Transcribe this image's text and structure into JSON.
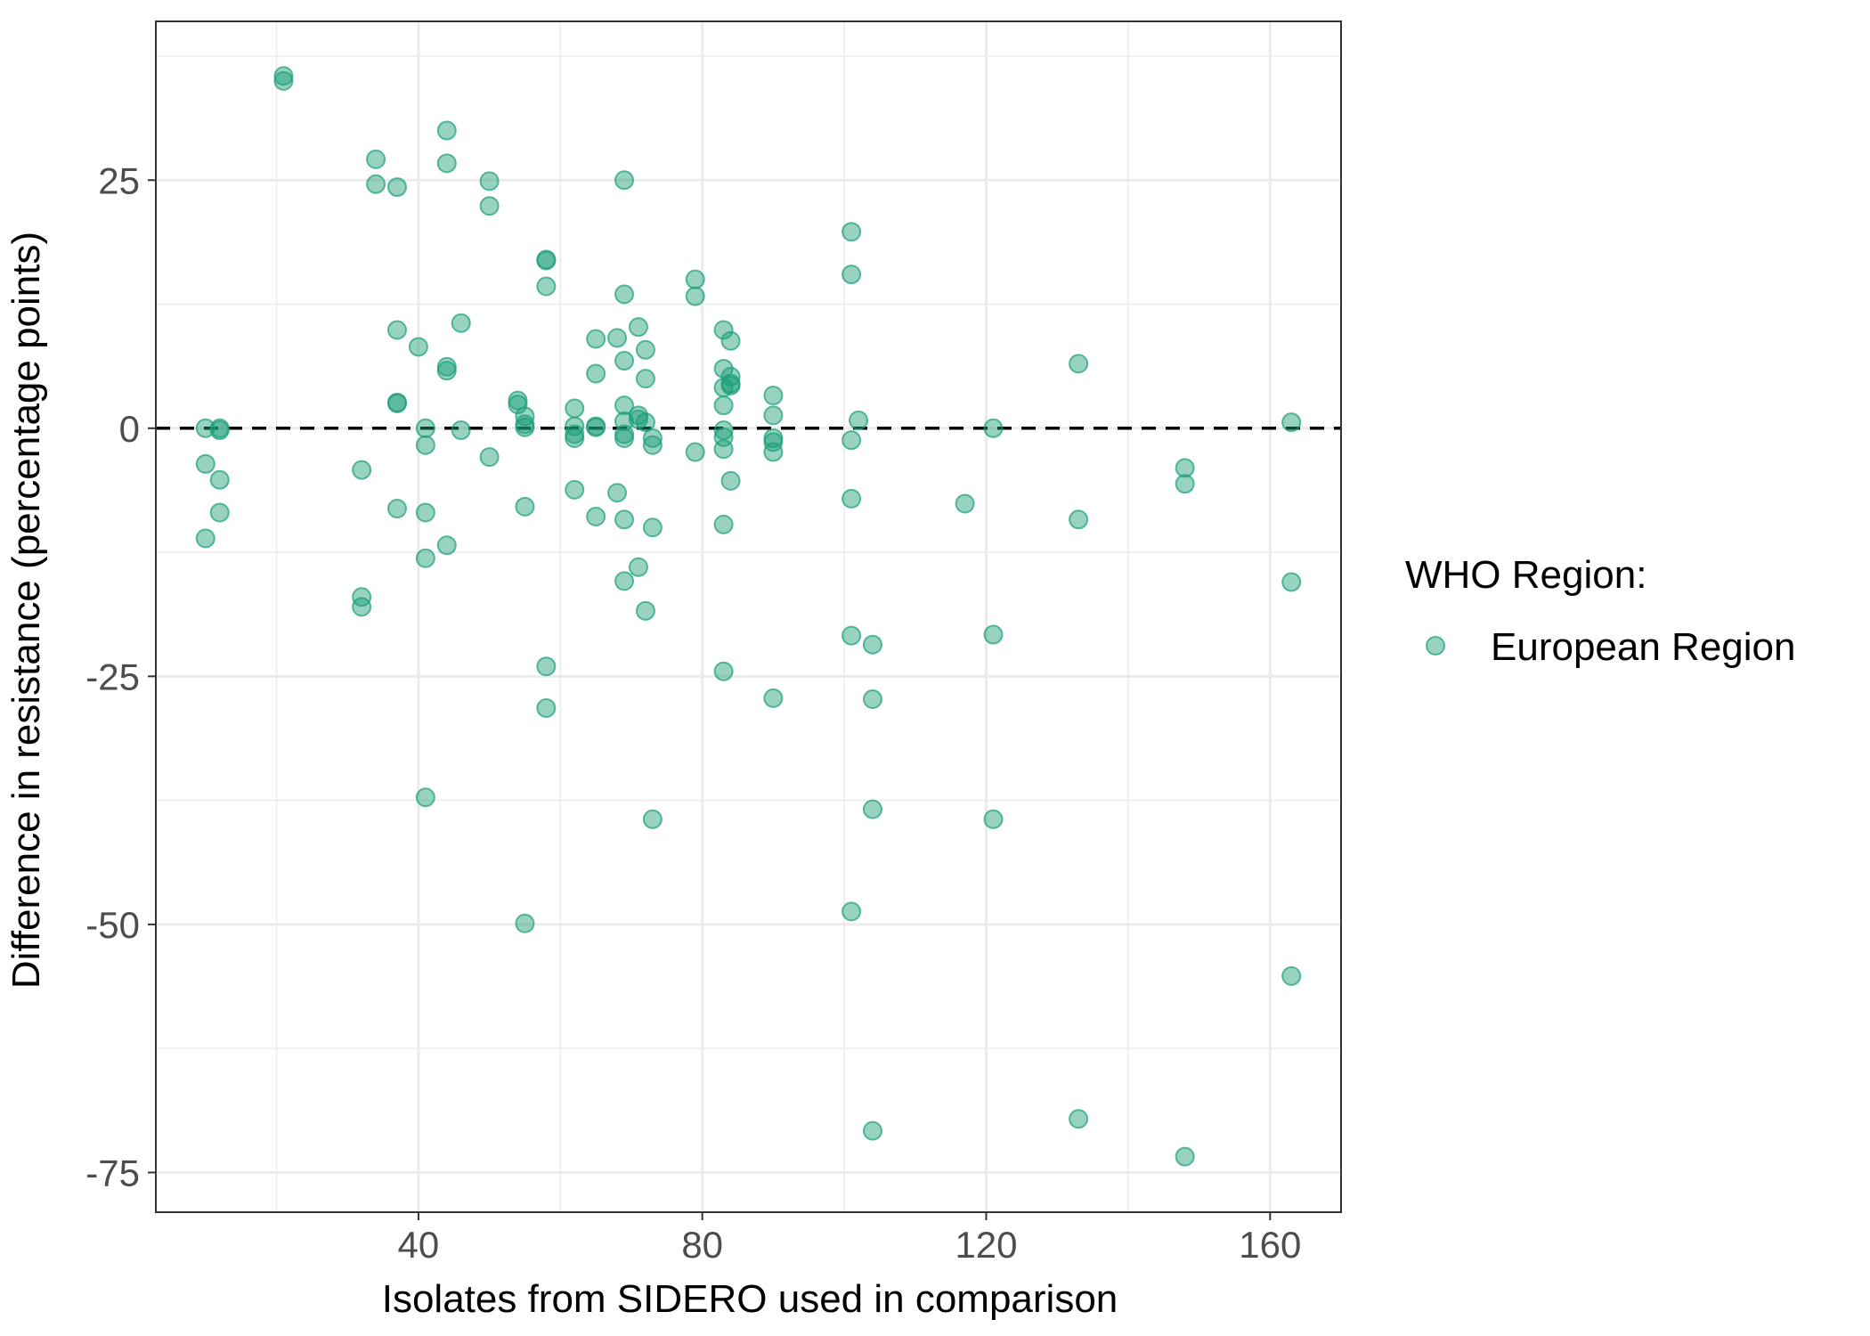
{
  "chart_data": {
    "type": "scatter",
    "title": "",
    "xlabel": "Isolates from SIDERO used in comparison",
    "ylabel": "Difference in resistance (percentage points)",
    "xlim": [
      3,
      170
    ],
    "ylim": [
      -79,
      41
    ],
    "x_ticks": [
      40,
      80,
      120,
      160
    ],
    "y_ticks": [
      25,
      0,
      -25,
      -50,
      -75
    ],
    "x_tick_labels": [
      "40",
      "80",
      "120",
      "160"
    ],
    "y_tick_labels": [
      "25",
      "0",
      "-25",
      "-50",
      "-75"
    ],
    "grid": true,
    "reference_line": {
      "y": 0,
      "style": "dashed",
      "color": "#000000"
    },
    "legend": {
      "title": "WHO Region:",
      "position": "right",
      "entries": [
        "European Region"
      ]
    },
    "point_color": "#1b9e77",
    "series": [
      {
        "name": "European Region",
        "points": [
          [
            21,
            35.5
          ],
          [
            21,
            35
          ],
          [
            10,
            0
          ],
          [
            12,
            0
          ],
          [
            12,
            -0.2
          ],
          [
            10,
            -3.6
          ],
          [
            12,
            -5.2
          ],
          [
            12,
            -8.5
          ],
          [
            10,
            -11.1
          ],
          [
            32,
            -4.2
          ],
          [
            32,
            -17
          ],
          [
            32,
            -18
          ],
          [
            34,
            27.1
          ],
          [
            34,
            24.6
          ],
          [
            37,
            24.3
          ],
          [
            37,
            9.9
          ],
          [
            37,
            2.6
          ],
          [
            37,
            2.5
          ],
          [
            37,
            -8.1
          ],
          [
            40,
            8.2
          ],
          [
            41,
            0
          ],
          [
            41,
            -1.7
          ],
          [
            41,
            -8.5
          ],
          [
            41,
            -13.1
          ],
          [
            41,
            -37.2
          ],
          [
            44,
            30
          ],
          [
            44,
            26.7
          ],
          [
            44,
            6.2
          ],
          [
            44,
            5.8
          ],
          [
            44,
            -11.8
          ],
          [
            46,
            10.6
          ],
          [
            46,
            -0.2
          ],
          [
            50,
            24.9
          ],
          [
            50,
            22.4
          ],
          [
            50,
            -2.9
          ],
          [
            54,
            2.8
          ],
          [
            54,
            2.4
          ],
          [
            55,
            1.2
          ],
          [
            55,
            0.4
          ],
          [
            55,
            0.1
          ],
          [
            55,
            -7.9
          ],
          [
            55,
            -49.9
          ],
          [
            58,
            17
          ],
          [
            58,
            16.9
          ],
          [
            58,
            14.3
          ],
          [
            58,
            -24
          ],
          [
            58,
            -28.2
          ],
          [
            62,
            2
          ],
          [
            62,
            0.2
          ],
          [
            62,
            -0.6
          ],
          [
            62,
            -1
          ],
          [
            62,
            -6.2
          ],
          [
            65,
            9
          ],
          [
            65,
            5.5
          ],
          [
            65,
            0.2
          ],
          [
            65,
            0.1
          ],
          [
            65,
            -8.9
          ],
          [
            68,
            9.1
          ],
          [
            68,
            -6.5
          ],
          [
            69,
            25
          ],
          [
            69,
            13.5
          ],
          [
            69,
            6.8
          ],
          [
            69,
            2.3
          ],
          [
            69,
            0.7
          ],
          [
            69,
            -0.6
          ],
          [
            69,
            -1
          ],
          [
            69,
            -9.2
          ],
          [
            69,
            -15.4
          ],
          [
            71,
            10.2
          ],
          [
            71,
            1.3
          ],
          [
            71,
            0.9
          ],
          [
            71,
            -14
          ],
          [
            72,
            7.9
          ],
          [
            72,
            5
          ],
          [
            72,
            0.6
          ],
          [
            72,
            -18.4
          ],
          [
            73,
            -1
          ],
          [
            73,
            -1.7
          ],
          [
            73,
            -10
          ],
          [
            73,
            -39.4
          ],
          [
            79,
            15
          ],
          [
            79,
            13.3
          ],
          [
            79,
            -2.4
          ],
          [
            83,
            9.9
          ],
          [
            83,
            6
          ],
          [
            83,
            4.1
          ],
          [
            83,
            2.3
          ],
          [
            83,
            -0.2
          ],
          [
            83,
            -0.9
          ],
          [
            83,
            -2.1
          ],
          [
            83,
            -9.7
          ],
          [
            83,
            -24.5
          ],
          [
            84,
            8.8
          ],
          [
            84,
            5.2
          ],
          [
            84,
            4.5
          ],
          [
            84,
            4.3
          ],
          [
            84,
            -5.3
          ],
          [
            90,
            3.3
          ],
          [
            90,
            1.3
          ],
          [
            90,
            -1
          ],
          [
            90,
            -1.4
          ],
          [
            90,
            -2.4
          ],
          [
            90,
            -27.2
          ],
          [
            101,
            19.8
          ],
          [
            101,
            15.5
          ],
          [
            101,
            -1.2
          ],
          [
            101,
            -7.1
          ],
          [
            101,
            -20.9
          ],
          [
            101,
            -48.7
          ],
          [
            102,
            0.8
          ],
          [
            104,
            -21.8
          ],
          [
            104,
            -27.3
          ],
          [
            104,
            -38.4
          ],
          [
            104,
            -70.8
          ],
          [
            117,
            -7.6
          ],
          [
            121,
            0
          ],
          [
            121,
            -20.8
          ],
          [
            121,
            -39.4
          ],
          [
            133,
            6.5
          ],
          [
            133,
            -9.2
          ],
          [
            133,
            -69.6
          ],
          [
            148,
            -4
          ],
          [
            148,
            -5.6
          ],
          [
            148,
            -73.4
          ],
          [
            163,
            0.6
          ],
          [
            163,
            -15.5
          ],
          [
            163,
            -55.2
          ]
        ]
      }
    ]
  }
}
